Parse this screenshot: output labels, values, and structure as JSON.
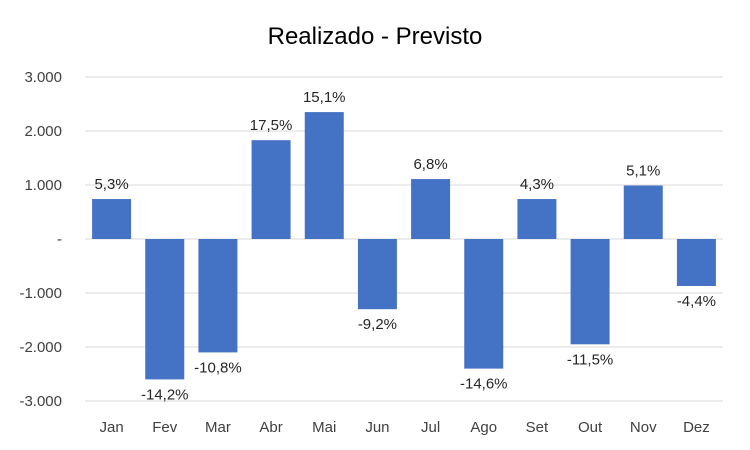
{
  "chart_data": {
    "type": "bar",
    "title": "Realizado - Previsto",
    "xlabel": "",
    "ylabel": "",
    "categories": [
      "Jan",
      "Fev",
      "Mar",
      "Abr",
      "Mai",
      "Jun",
      "Jul",
      "Ago",
      "Set",
      "Out",
      "Nov",
      "Dez"
    ],
    "values": [
      740,
      -2600,
      -2100,
      1830,
      2350,
      -1300,
      1110,
      -2400,
      740,
      -1950,
      990,
      -870
    ],
    "data_labels": [
      "5,3%",
      "-14,2%",
      "-10,8%",
      "17,5%",
      "15,1%",
      "-9,2%",
      "6,8%",
      "-14,6%",
      "4,3%",
      "-11,5%",
      "5,1%",
      "-4,4%"
    ],
    "ylim": [
      -3000,
      3000
    ],
    "yticks": [
      3000,
      2000,
      1000,
      0,
      -1000,
      -2000,
      -3000
    ],
    "ytick_labels": [
      "3.000",
      "2.000",
      "1.000",
      "-",
      "-1.000",
      "-2.000",
      "-3.000"
    ],
    "grid": true,
    "legend": "none",
    "bar_color": "#4472C4",
    "grid_color": "#D9D9D9"
  }
}
